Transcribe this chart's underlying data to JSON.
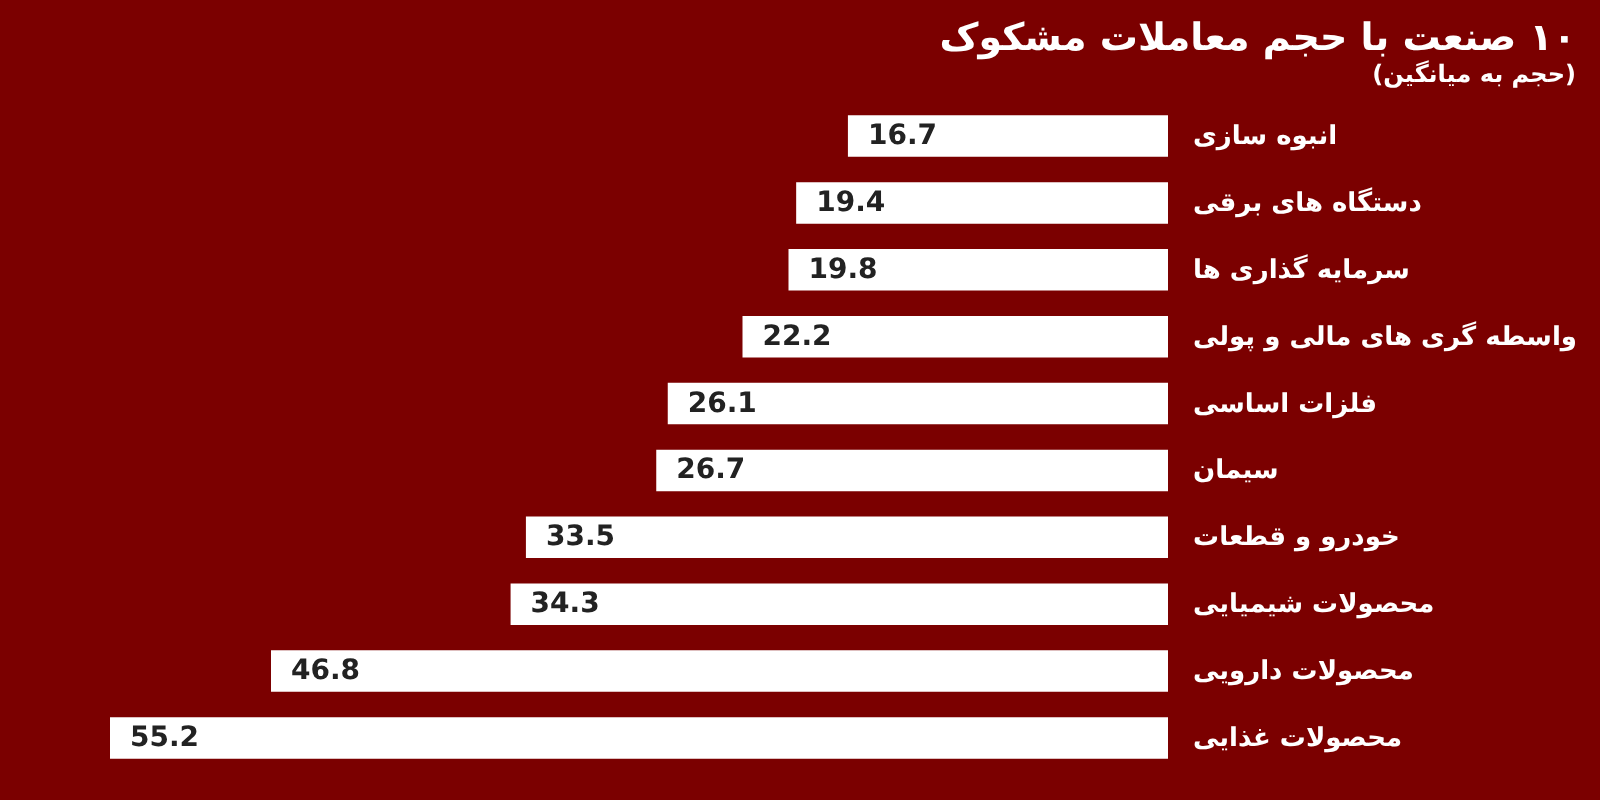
{
  "chart_data": {
    "type": "bar",
    "orientation": "horizontal",
    "title": "۱۰ صنعت با حجم معاملات مشکوک",
    "subtitle": "(حجم به میانگین)",
    "categories": [
      "انبوه سازی",
      "دستگاه های برقی",
      "سرمایه گذاری ها",
      "واسطه گری های مالی و پولی",
      "فلزات اساسی",
      "سیمان",
      "خودرو و قطعات",
      "محصولات شیمیایی",
      "محصولات دارویی",
      "محصولات غذایی"
    ],
    "values": [
      16.7,
      19.4,
      19.8,
      22.2,
      26.1,
      26.7,
      33.5,
      34.3,
      46.8,
      55.2
    ],
    "color": "#ffffff",
    "data_labels": true
  }
}
